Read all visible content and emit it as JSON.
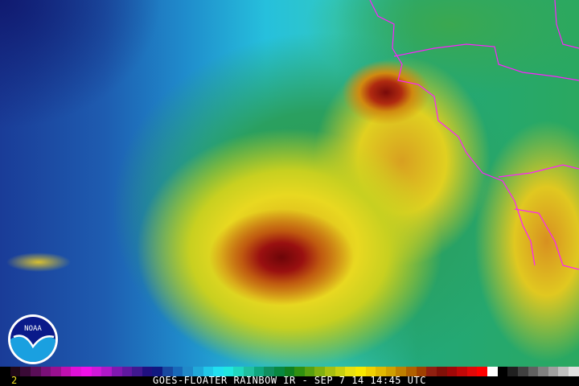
{
  "image": {
    "kind": "GOES floater rainbow IR satellite image"
  },
  "logo": {
    "text": "NOAA"
  },
  "caption": {
    "title": "GOES-FLOATER RAINBOW IR - SEP 7 14 14:45 UTC",
    "frame": "2"
  },
  "colors": {
    "border": "#ff20ff",
    "frame_label": "#f0e020"
  },
  "colorbar": [
    "#000000",
    "#200818",
    "#3a0a36",
    "#5a0e58",
    "#7a1078",
    "#9a1090",
    "#c010b0",
    "#e010d8",
    "#f010e8",
    "#d018d8",
    "#b018c8",
    "#8018b0",
    "#6018a0",
    "#401890",
    "#201080",
    "#101880",
    "#1848a0",
    "#1868b8",
    "#2088c8",
    "#20a8d8",
    "#20c8e8",
    "#20e0f0",
    "#20e8e0",
    "#20d8c0",
    "#20c0a0",
    "#10a880",
    "#109060",
    "#088840",
    "#108020",
    "#309010",
    "#58a010",
    "#80b010",
    "#a8c010",
    "#c8d010",
    "#e8e010",
    "#f8e800",
    "#f0d000",
    "#e0b800",
    "#d0a000",
    "#c08000",
    "#b06000",
    "#a04000",
    "#902010",
    "#801008",
    "#a00808",
    "#c00808",
    "#e00808",
    "#ff0000",
    "#ffffff",
    "#000000",
    "#202020",
    "#404040",
    "#606060",
    "#808080",
    "#a0a0a0",
    "#c0c0c0",
    "#e0e0e0"
  ]
}
